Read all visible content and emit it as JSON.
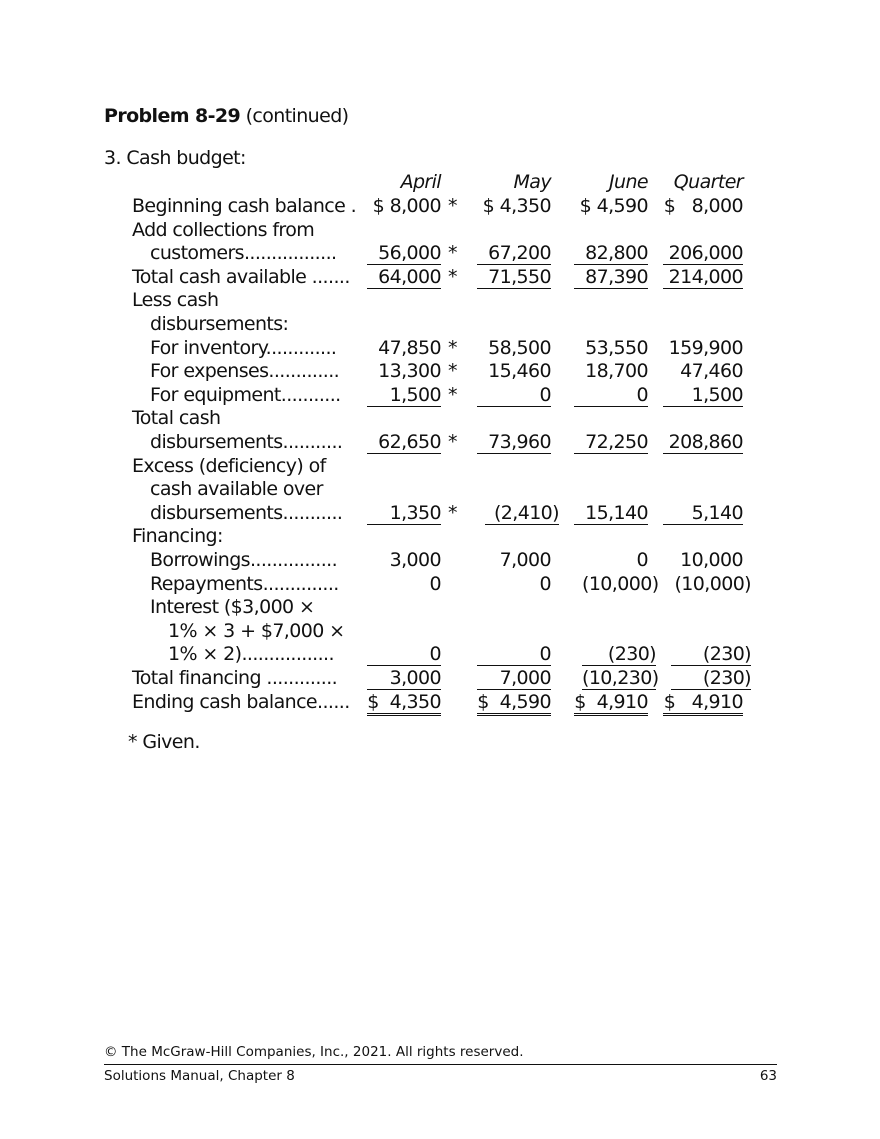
{
  "header": {
    "problem": "Problem 8-29",
    "continued": "(continued)",
    "section": "3. Cash budget:"
  },
  "columns": [
    "April",
    "May",
    "June",
    "Quarter"
  ],
  "rows": [
    {
      "label": "Beginning cash balance .",
      "indent": 0,
      "cells": [
        {
          "v": "$ 8,000",
          "star": true
        },
        {
          "v": "$ 4,350"
        },
        {
          "v": "$ 4,590"
        },
        {
          "v": "$   8,000"
        }
      ]
    },
    {
      "label": "Add collections from",
      "indent": 0
    },
    {
      "label": "customers.................",
      "indent": 1,
      "cells": [
        {
          "v": "56,000",
          "star": true,
          "rule": "single"
        },
        {
          "v": "67,200",
          "rule": "single"
        },
        {
          "v": "82,800",
          "rule": "single"
        },
        {
          "v": "206,000",
          "rule": "single"
        }
      ]
    },
    {
      "label": "Total cash available .......",
      "indent": 0,
      "cells": [
        {
          "v": "64,000",
          "star": true,
          "rule": "single"
        },
        {
          "v": "71,550",
          "rule": "single"
        },
        {
          "v": "87,390",
          "rule": "single"
        },
        {
          "v": "214,000",
          "rule": "single"
        }
      ]
    },
    {
      "label": "Less cash",
      "indent": 0
    },
    {
      "label": "disbursements:",
      "indent": 1
    },
    {
      "label": "For inventory.............",
      "indent": 1,
      "cells": [
        {
          "v": "47,850",
          "star": true
        },
        {
          "v": "58,500"
        },
        {
          "v": "53,550"
        },
        {
          "v": "159,900"
        }
      ]
    },
    {
      "label": "For expenses.............",
      "indent": 1,
      "cells": [
        {
          "v": "13,300",
          "star": true
        },
        {
          "v": "15,460"
        },
        {
          "v": "18,700"
        },
        {
          "v": "47,460"
        }
      ]
    },
    {
      "label": "For equipment...........",
      "indent": 1,
      "cells": [
        {
          "v": "1,500",
          "star": true,
          "rule": "single"
        },
        {
          "v": "0",
          "rule": "single"
        },
        {
          "v": "0",
          "rule": "single"
        },
        {
          "v": "1,500",
          "rule": "single"
        }
      ]
    },
    {
      "label": "Total cash",
      "indent": 0
    },
    {
      "label": "disbursements...........",
      "indent": 1,
      "cells": [
        {
          "v": "62,650",
          "star": true,
          "rule": "single"
        },
        {
          "v": "73,960",
          "rule": "single"
        },
        {
          "v": "72,250",
          "rule": "single"
        },
        {
          "v": "208,860",
          "rule": "single"
        }
      ]
    },
    {
      "label": "Excess (deficiency) of",
      "indent": 0
    },
    {
      "label": "cash available over",
      "indent": 1
    },
    {
      "label": "disbursements...........",
      "indent": 1,
      "cells": [
        {
          "v": "1,350",
          "star": true,
          "rule": "single"
        },
        {
          "v": "(2,410)",
          "rule": "single"
        },
        {
          "v": "15,140",
          "rule": "single"
        },
        {
          "v": "5,140",
          "rule": "single"
        }
      ]
    },
    {
      "label": "Financing:",
      "indent": 0
    },
    {
      "label": "Borrowings................",
      "indent": 1,
      "cells": [
        {
          "v": "3,000"
        },
        {
          "v": "7,000"
        },
        {
          "v": "0"
        },
        {
          "v": "10,000"
        }
      ]
    },
    {
      "label": "Repayments..............",
      "indent": 1,
      "cells": [
        {
          "v": "0"
        },
        {
          "v": "0"
        },
        {
          "v": "(10,000)"
        },
        {
          "v": "(10,000)"
        }
      ]
    },
    {
      "label": "Interest ($3,000 ×",
      "indent": 1
    },
    {
      "label": "1% × 3 + $7,000 ×",
      "indent": 2
    },
    {
      "label": "1% × 2).................",
      "indent": 2,
      "cells": [
        {
          "v": "0",
          "rule": "single"
        },
        {
          "v": "0",
          "rule": "single"
        },
        {
          "v": "(230)",
          "rule": "single"
        },
        {
          "v": "(230)",
          "rule": "single"
        }
      ]
    },
    {
      "label": "Total financing .............",
      "indent": 0,
      "cells": [
        {
          "v": "3,000",
          "rule": "single"
        },
        {
          "v": "7,000",
          "rule": "single"
        },
        {
          "v": "(10,230)",
          "rule": "single"
        },
        {
          "v": "(230)",
          "rule": "single"
        }
      ]
    },
    {
      "label": "Ending cash balance......",
      "indent": 0,
      "cells": [
        {
          "v": "$  4,350",
          "rule": "double"
        },
        {
          "v": "$  4,590",
          "rule": "double"
        },
        {
          "v": "$  4,910",
          "rule": "double"
        },
        {
          "v": "$   4,910",
          "rule": "double"
        }
      ]
    }
  ],
  "star_symbol": "*",
  "note": "* Given.",
  "footer": {
    "copyright": "© The McGraw-Hill Companies, Inc., 2021. All rights reserved.",
    "manual": "Solutions Manual, Chapter 8",
    "page": "63"
  }
}
